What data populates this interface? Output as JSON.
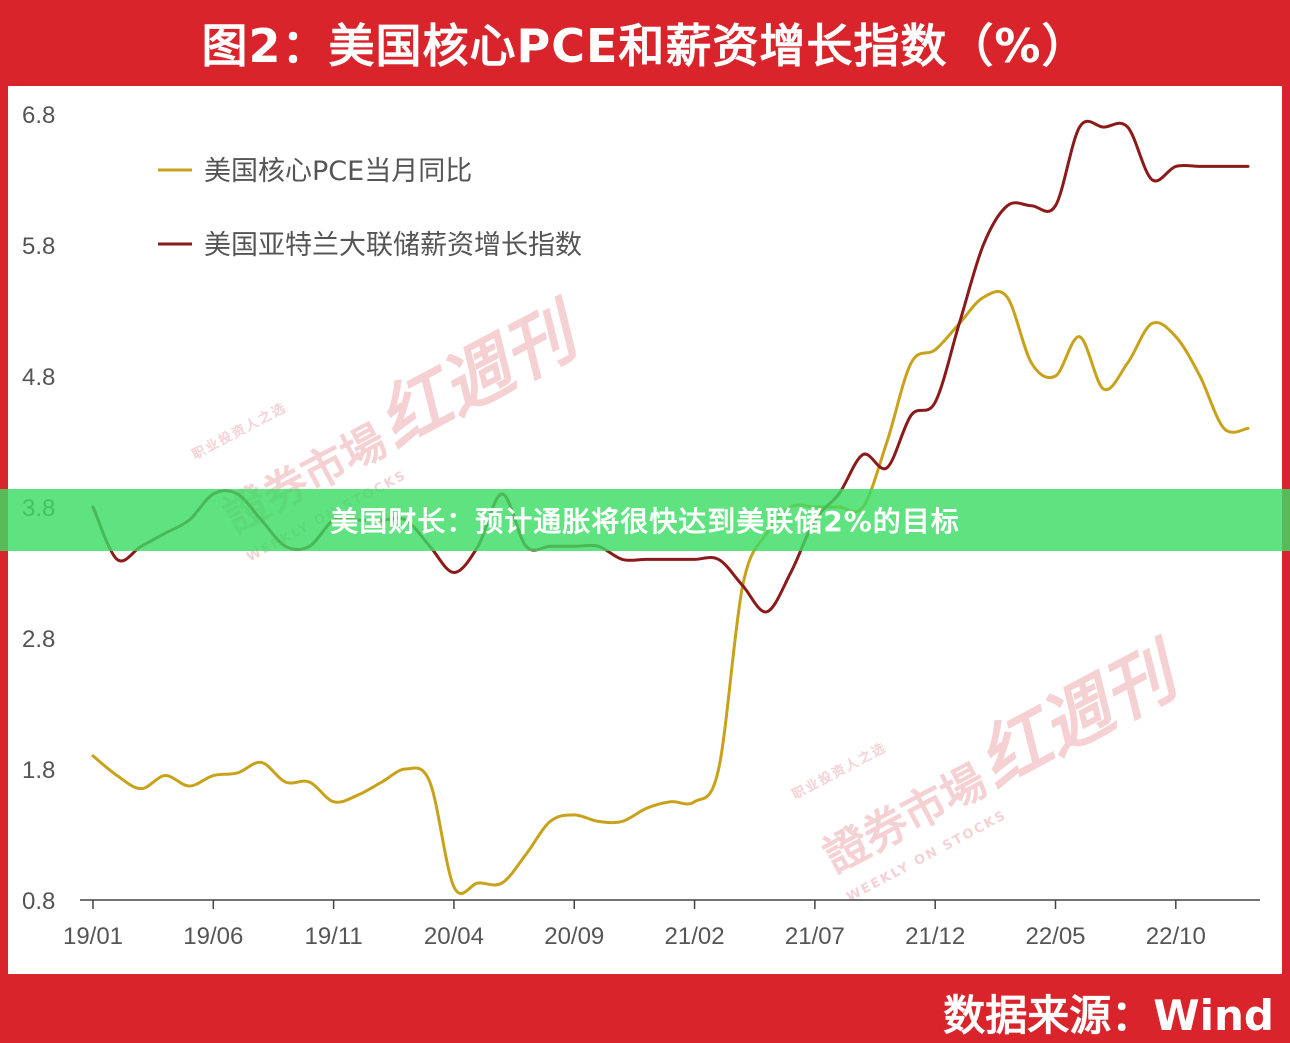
{
  "title": "图2：美国核心PCE和薪资增长指数（%）",
  "source": "数据来源：Wind",
  "banner": "美国财长：预计通胀将很快达到美联储2%的目标",
  "watermark": {
    "main": "證券市場",
    "big": "红週刊",
    "sub_cn": "职业投资人之选",
    "sub_en": "WEEKLY ON STOCKS"
  },
  "colors": {
    "frame": "#d8242a",
    "pce": "#c9a21b",
    "wage": "#8b1a1a",
    "banner": "#3cdc64"
  },
  "chart_data": {
    "type": "line",
    "title": "图2：美国核心PCE和薪资增长指数（%）",
    "xlabel": "",
    "ylabel": "",
    "ylim": [
      0.8,
      6.8
    ],
    "yticks": [
      "6.8",
      "5.8",
      "4.8",
      "3.8",
      "2.8",
      "1.8",
      "0.8"
    ],
    "xticks": [
      "19/01",
      "19/06",
      "19/11",
      "20/04",
      "20/09",
      "21/02",
      "21/07",
      "21/12",
      "22/05",
      "22/10"
    ],
    "grid": false,
    "legend_position": "top-left",
    "x": [
      "19/01",
      "19/02",
      "19/03",
      "19/04",
      "19/05",
      "19/06",
      "19/07",
      "19/08",
      "19/09",
      "19/10",
      "19/11",
      "19/12",
      "20/01",
      "20/02",
      "20/03",
      "20/04",
      "20/05",
      "20/06",
      "20/07",
      "20/08",
      "20/09",
      "20/10",
      "20/11",
      "20/12",
      "21/01",
      "21/02",
      "21/03",
      "21/04",
      "21/05",
      "21/06",
      "21/07",
      "21/08",
      "21/09",
      "21/10",
      "21/11",
      "21/12",
      "22/01",
      "22/02",
      "22/03",
      "22/04",
      "22/05",
      "22/06",
      "22/07",
      "22/08",
      "22/09",
      "22/10",
      "22/11",
      "22/12",
      "23/01"
    ],
    "series": [
      {
        "name": "美国核心PCE当月同比",
        "color": "#c9a21b",
        "values": [
          1.9,
          1.75,
          1.65,
          1.75,
          1.67,
          1.75,
          1.77,
          1.85,
          1.7,
          1.7,
          1.55,
          1.6,
          1.7,
          1.8,
          1.7,
          0.9,
          0.93,
          0.93,
          1.15,
          1.4,
          1.45,
          1.4,
          1.4,
          1.5,
          1.55,
          1.55,
          1.8,
          3.2,
          3.6,
          3.8,
          3.8,
          3.8,
          3.8,
          4.3,
          4.9,
          5.0,
          5.2,
          5.4,
          5.4,
          4.9,
          4.8,
          5.1,
          4.7,
          4.9,
          5.2,
          5.1,
          4.8,
          4.4,
          4.4
        ]
      },
      {
        "name": "美国亚特兰大联储薪资增长指数",
        "color": "#8b1a1a",
        "values": [
          3.8,
          3.4,
          3.5,
          3.6,
          3.7,
          3.9,
          3.9,
          3.7,
          3.5,
          3.5,
          3.7,
          3.7,
          3.7,
          3.7,
          3.5,
          3.3,
          3.5,
          3.9,
          3.5,
          3.5,
          3.5,
          3.5,
          3.4,
          3.4,
          3.4,
          3.4,
          3.4,
          3.2,
          3.0,
          3.3,
          3.7,
          3.9,
          4.2,
          4.1,
          4.5,
          4.6,
          5.2,
          5.8,
          6.1,
          6.1,
          6.1,
          6.7,
          6.7,
          6.7,
          6.3,
          6.4,
          6.4,
          6.4,
          6.4
        ]
      }
    ]
  }
}
